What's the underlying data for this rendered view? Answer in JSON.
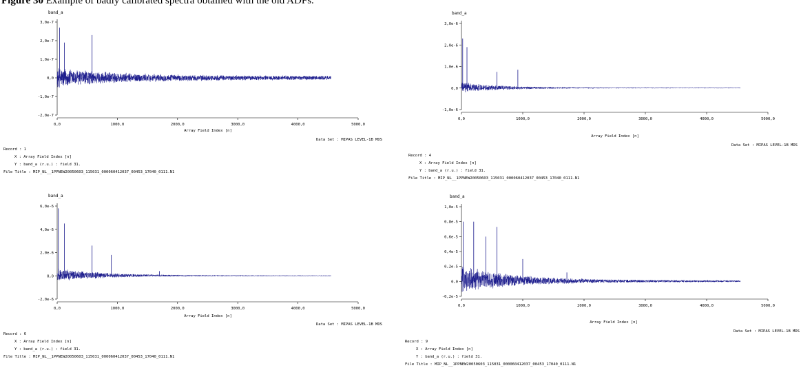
{
  "caption": {
    "label": "Figure 30",
    "text": "Example of badly calibrated spectra obtained with the old ADFs."
  },
  "chart_data": [
    {
      "type": "line",
      "title": "band_a",
      "xlabel": "Array Field Index [n]",
      "ylabel": "",
      "xlim": [
        0,
        5000
      ],
      "ylim": [
        -2e-07,
        3e-07
      ],
      "x_ticks": [
        "0,0",
        "1000,0",
        "2000,0",
        "3000,0",
        "4000,0",
        "5000,0"
      ],
      "y_ticks": [
        "3,0e-7",
        "2,0e-7",
        "1,0e-7",
        "0,0",
        "-1,0e-7",
        "-2,0e-7"
      ],
      "series": [
        {
          "color": "#1a1a8c",
          "n_points": 4550,
          "noise_start": 6e-08,
          "noise_end": 1.2e-08,
          "decay_index": 1000,
          "spikes": [
            {
              "x": 40,
              "y": 2.7e-07
            },
            {
              "x": 580,
              "y": 2.3e-07
            },
            {
              "x": 120,
              "y": 1.9e-07
            }
          ]
        }
      ],
      "dataset": "Data Set : MIPAS LEVEL-1B MDS",
      "record": "Record : 1",
      "x_desc": "X : Array Field Index [n]",
      "y_desc": "Y : band_a (r.u.) : field 31.",
      "file_title": "File Title : MIP_NL__1PPNEW20050603_115031_000060412037_00453_17040_0111.N1"
    },
    {
      "type": "line",
      "title": "band_a",
      "xlabel": "Array Field Index [n]",
      "ylabel": "",
      "xlim": [
        0,
        5000
      ],
      "ylim": [
        -1e-06,
        3e-06
      ],
      "x_ticks": [
        "0,0",
        "1000,0",
        "2000,0",
        "3000,0",
        "4000,0",
        "5000,0"
      ],
      "y_ticks": [
        "3,0e-6",
        "2,0e-6",
        "1,0e-6",
        "0,0",
        "-1,0e-6"
      ],
      "series": [
        {
          "color": "#1a1a8c",
          "n_points": 4550,
          "noise_start": 2.5e-07,
          "noise_end": 1.5e-08,
          "decay_index": 700,
          "spikes": [
            {
              "x": 20,
              "y": 2.3e-06
            },
            {
              "x": 90,
              "y": 1.9e-06
            },
            {
              "x": 580,
              "y": 7.5e-07
            },
            {
              "x": 920,
              "y": 8.5e-07
            }
          ]
        }
      ],
      "dataset": "Data Set : MIPAS LEVEL-1B MDS",
      "record": "Record : 4",
      "x_desc": "X : Array Field Index [n]",
      "y_desc": "Y : band_a (r.u.) : field 31.",
      "file_title": "File Title : MIP_NL__1PPNEW20050603_115031_000060412037_00453_17040_0111.N1"
    },
    {
      "type": "line",
      "title": "band_a",
      "xlabel": "Array Field Index [n]",
      "ylabel": "",
      "xlim": [
        0,
        5000
      ],
      "ylim": [
        -2e-06,
        6e-06
      ],
      "x_ticks": [
        "0,0",
        "1000,0",
        "2000,0",
        "3000,0",
        "4000,0",
        "5000,0"
      ],
      "y_ticks": [
        "6,0e-6",
        "4,0e-6",
        "2,0e-6",
        "0,0",
        "-2,0e-6"
      ],
      "series": [
        {
          "color": "#1a1a8c",
          "n_points": 4550,
          "noise_start": 6e-07,
          "noise_end": 3e-08,
          "decay_index": 800,
          "spikes": [
            {
              "x": 20,
              "y": 5.8e-06
            },
            {
              "x": 120,
              "y": 4.5e-06
            },
            {
              "x": 580,
              "y": 2.6e-06
            },
            {
              "x": 900,
              "y": 1.8e-06
            },
            {
              "x": 1700,
              "y": 4e-07
            }
          ]
        }
      ],
      "dataset": "Data Set : MIPAS LEVEL-1B MDS",
      "record": "Record : 6",
      "x_desc": "X : Array Field Index [n]",
      "y_desc": "Y : band_a (r.u.) : field 31.",
      "file_title": "File Title : MIP_NL__1PPNEW20050603_115031_000060412037_00453_17040_0111.N1"
    },
    {
      "type": "line",
      "title": "band_a",
      "xlabel": "Array Field Index [n]",
      "ylabel": "",
      "xlim": [
        0,
        5000
      ],
      "ylim": [
        -2e-06,
        1e-05
      ],
      "x_ticks": [
        "0,0",
        "1000,0",
        "2000,0",
        "3000,0",
        "4000,0",
        "5000,0"
      ],
      "y_ticks": [
        "1,0e-5",
        "0,8e-5",
        "0,6e-5",
        "0,4e-5",
        "0,2e-5",
        "0,0",
        "-0,2e-5"
      ],
      "series": [
        {
          "color": "#1a1a8c",
          "n_points": 4550,
          "noise_start": 2e-06,
          "noise_end": 1.2e-07,
          "decay_index": 900,
          "spikes": [
            {
              "x": 30,
              "y": 8e-06
            },
            {
              "x": 200,
              "y": 8e-06
            },
            {
              "x": 580,
              "y": 7.3e-06
            },
            {
              "x": 400,
              "y": 6e-06
            },
            {
              "x": 1000,
              "y": 3e-06
            },
            {
              "x": 1720,
              "y": 1.2e-06
            }
          ]
        }
      ],
      "dataset": "Data Set : MIPAS LEVEL-1B MDS",
      "record": "Record : 9",
      "x_desc": "X : Array Field Index [n]",
      "y_desc": "Y : band_a (r.u.) : field 31.",
      "file_title": "File Title : MIP_NL__1PPNEW20050603_115031_000060412037_00453_17040_0111.N1"
    }
  ]
}
